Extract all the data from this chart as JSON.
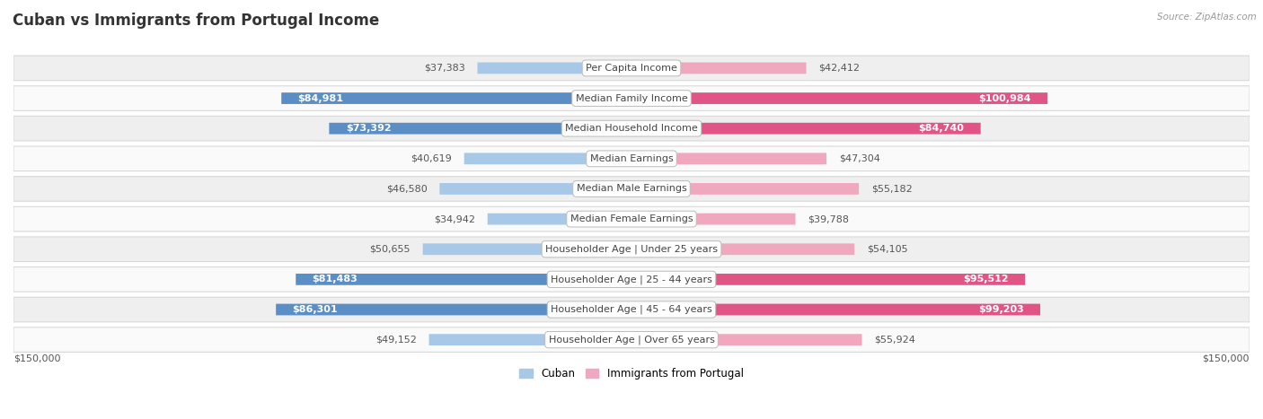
{
  "title": "Cuban vs Immigrants from Portugal Income",
  "source": "Source: ZipAtlas.com",
  "categories": [
    "Per Capita Income",
    "Median Family Income",
    "Median Household Income",
    "Median Earnings",
    "Median Male Earnings",
    "Median Female Earnings",
    "Householder Age | Under 25 years",
    "Householder Age | 25 - 44 years",
    "Householder Age | 45 - 64 years",
    "Householder Age | Over 65 years"
  ],
  "cuban_values": [
    37383,
    84981,
    73392,
    40619,
    46580,
    34942,
    50655,
    81483,
    86301,
    49152
  ],
  "portugal_values": [
    42412,
    100984,
    84740,
    47304,
    55182,
    39788,
    54105,
    95512,
    99203,
    55924
  ],
  "cuban_labels": [
    "$37,383",
    "$84,981",
    "$73,392",
    "$40,619",
    "$46,580",
    "$34,942",
    "$50,655",
    "$81,483",
    "$86,301",
    "$49,152"
  ],
  "portugal_labels": [
    "$42,412",
    "$100,984",
    "$84,740",
    "$47,304",
    "$55,182",
    "$39,788",
    "$54,105",
    "$95,512",
    "$99,203",
    "$55,924"
  ],
  "cuban_color_light": "#a8c8e8",
  "cuban_color_dark": "#5b8ec4",
  "portugal_color_light": "#f0a8bf",
  "portugal_color_dark": "#e05585",
  "cuban_label_threshold": 60000,
  "portugal_label_threshold": 80000,
  "max_value": 150000,
  "row_bg_even": "#efefef",
  "row_bg_odd": "#fafafa",
  "row_border": "#d8d8d8",
  "legend_cuban": "Cuban",
  "legend_portugal": "Immigrants from Portugal",
  "xlabel_left": "$150,000",
  "xlabel_right": "$150,000",
  "title_fontsize": 12,
  "source_fontsize": 7.5,
  "label_fontsize": 8,
  "category_fontsize": 8
}
